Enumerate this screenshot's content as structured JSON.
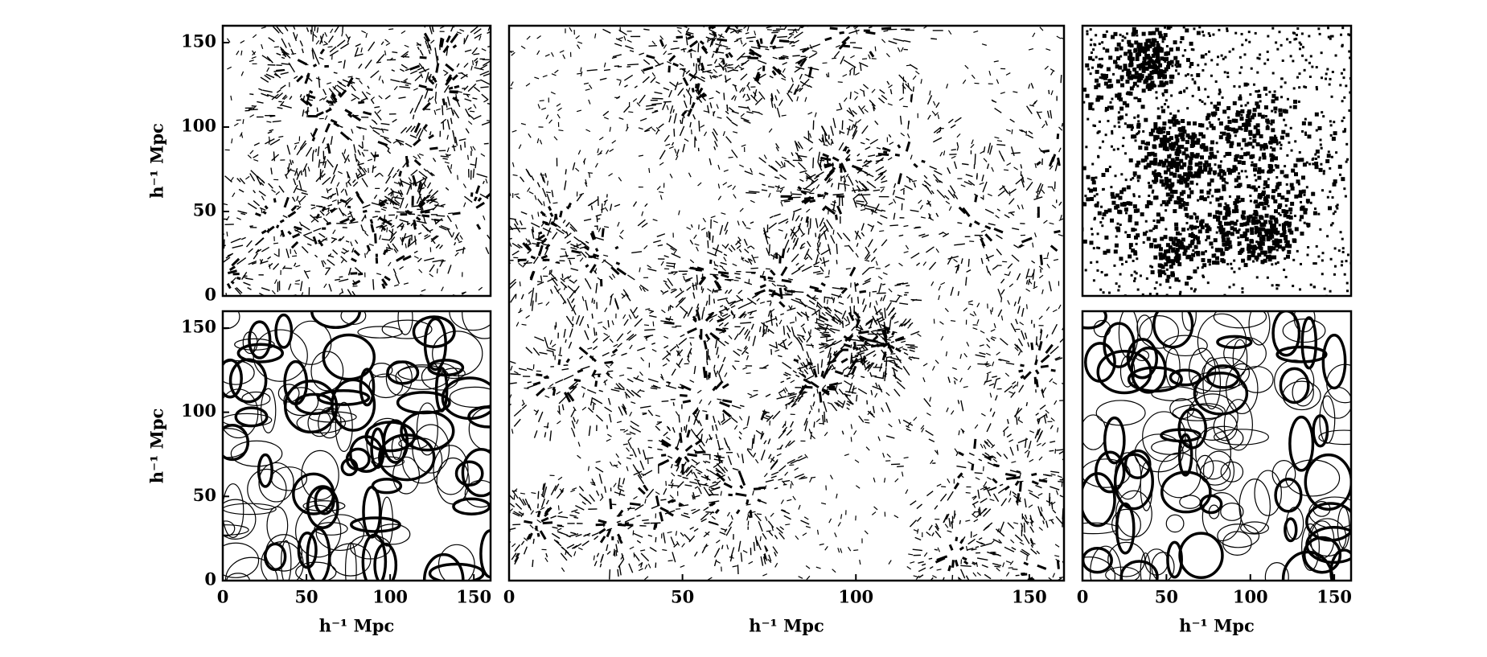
{
  "chart_data": [
    {
      "type": "field",
      "xlim": [
        0,
        160
      ],
      "ylim": [
        0,
        160
      ],
      "yticks": [
        0,
        50,
        100,
        150
      ],
      "ylabel": "h⁻¹ Mpc"
    },
    {
      "type": "contour",
      "xlim": [
        0,
        160
      ],
      "ylim": [
        0,
        160
      ],
      "xticks": [
        0,
        50,
        100,
        150
      ],
      "yticks": [
        0,
        50,
        100,
        150
      ],
      "xlabel": "h⁻¹ Mpc",
      "ylabel": "h⁻¹ Mpc"
    },
    {
      "type": "field",
      "xlim": [
        0,
        160
      ],
      "ylim": [
        0,
        160
      ],
      "xticks": [
        0,
        50,
        100,
        150
      ],
      "xlabel": "h⁻¹ Mpc"
    },
    {
      "type": "dots",
      "xlim": [
        0,
        160
      ],
      "ylim": [
        0,
        160
      ]
    },
    {
      "type": "contour",
      "xlim": [
        0,
        160
      ],
      "ylim": [
        0,
        160
      ],
      "xticks": [
        0,
        50,
        100,
        150
      ],
      "xlabel": "h⁻¹ Mpc"
    }
  ]
}
